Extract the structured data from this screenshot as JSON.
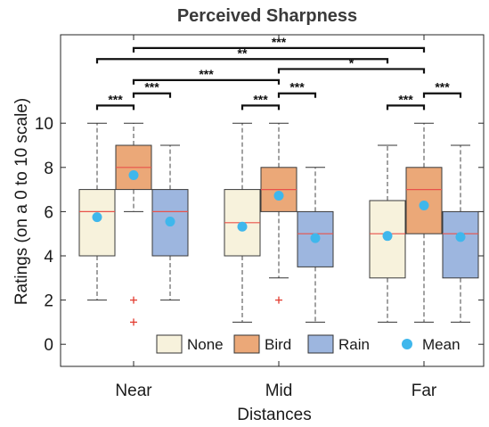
{
  "chart_data": {
    "type": "box",
    "title": "Perceived Sharpness",
    "xlabel": "Distances",
    "ylabel": "Ratings (on a 0 to 10 scale)",
    "ylim": [
      -1,
      14
    ],
    "yticks": [
      0,
      2,
      4,
      6,
      8,
      10
    ],
    "categories": [
      "Near",
      "Mid",
      "Far"
    ],
    "grid": false,
    "legend_position": "bottom-right",
    "series": [
      {
        "name": "None",
        "color": "#f7f2dc",
        "boxes": [
          {
            "whisker_low": 2,
            "q1": 4,
            "median": 6,
            "q3": 7,
            "whisker_high": 10,
            "mean": 5.75,
            "outliers": []
          },
          {
            "whisker_low": 1,
            "q1": 4,
            "median": 5.5,
            "q3": 7,
            "whisker_high": 10,
            "mean": 5.32,
            "outliers": []
          },
          {
            "whisker_low": 1,
            "q1": 3,
            "median": 5,
            "q3": 6.5,
            "whisker_high": 9,
            "mean": 4.9,
            "outliers": []
          }
        ]
      },
      {
        "name": "Bird",
        "color": "#eba878",
        "boxes": [
          {
            "whisker_low": 6,
            "q1": 7,
            "median": 8,
            "q3": 9,
            "whisker_high": 10,
            "mean": 7.65,
            "outliers": [
              2,
              1
            ]
          },
          {
            "whisker_low": 3,
            "q1": 6,
            "median": 7,
            "q3": 8,
            "whisker_high": 10,
            "mean": 6.72,
            "outliers": [
              2
            ]
          },
          {
            "whisker_low": 1,
            "q1": 5,
            "median": 7,
            "q3": 8,
            "whisker_high": 10,
            "mean": 6.28,
            "outliers": []
          }
        ]
      },
      {
        "name": "Rain",
        "color": "#9db6df",
        "boxes": [
          {
            "whisker_low": 2,
            "q1": 4,
            "median": 6,
            "q3": 7,
            "whisker_high": 9,
            "mean": 5.55,
            "outliers": []
          },
          {
            "whisker_low": 1,
            "q1": 3.5,
            "median": 5,
            "q3": 6,
            "whisker_high": 8,
            "mean": 4.8,
            "outliers": []
          },
          {
            "whisker_low": 1,
            "q1": 3,
            "median": 5,
            "q3": 6,
            "whisker_high": 9,
            "mean": 4.85,
            "outliers": []
          }
        ]
      }
    ],
    "mean_marker": {
      "name": "Mean",
      "color": "#3fb7ec"
    },
    "median_color": "#e8524a",
    "outlier_color": "#e23a2e",
    "significance": [
      {
        "from": "Near.None",
        "to": "Near.Bird",
        "label": "***",
        "level": 10.8
      },
      {
        "from": "Near.Bird",
        "to": "Near.Rain",
        "label": "***",
        "level": 11.35
      },
      {
        "from": "Mid.None",
        "to": "Mid.Bird",
        "label": "***",
        "level": 10.8
      },
      {
        "from": "Mid.Bird",
        "to": "Mid.Rain",
        "label": "***",
        "level": 11.35
      },
      {
        "from": "Far.None",
        "to": "Far.Bird",
        "label": "***",
        "level": 10.8
      },
      {
        "from": "Far.Bird",
        "to": "Far.Rain",
        "label": "***",
        "level": 11.35
      },
      {
        "from": "Near.Bird",
        "to": "Mid.Bird",
        "label": "***",
        "level": 11.95
      },
      {
        "from": "Mid.Bird",
        "to": "Far.Bird",
        "label": "*",
        "level": 12.45
      },
      {
        "from": "Near.None",
        "to": "Far.None",
        "label": "**",
        "level": 12.9
      },
      {
        "from": "Near.Bird",
        "to": "Far.Bird",
        "label": "***",
        "level": 13.4
      }
    ]
  }
}
